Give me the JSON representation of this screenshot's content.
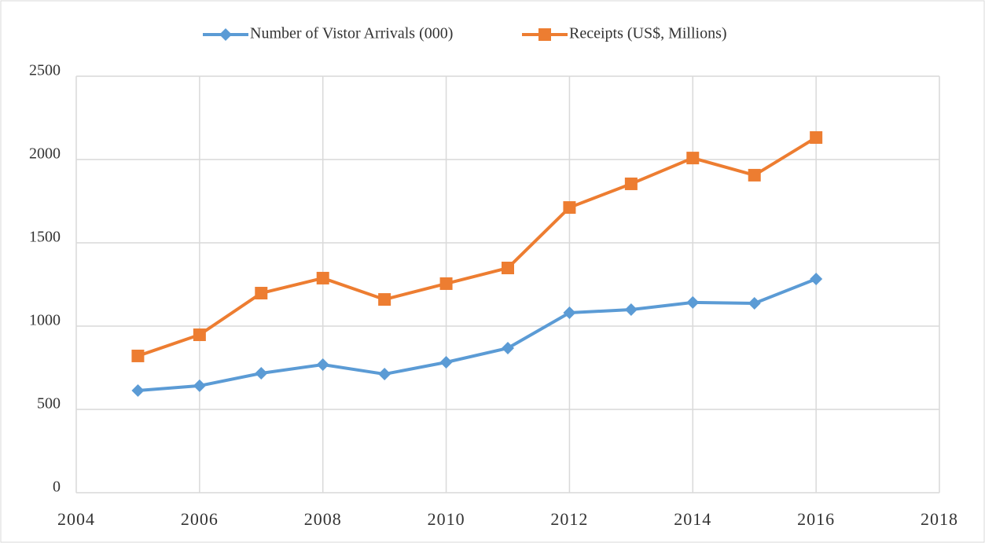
{
  "chart_data": {
    "type": "line",
    "x": [
      2005,
      2006,
      2007,
      2008,
      2009,
      2010,
      2011,
      2012,
      2013,
      2014,
      2015,
      2016
    ],
    "series": [
      {
        "name": "Number of Vistor Arrivals (000)",
        "color": "#5b9bd5",
        "marker": "diamond",
        "values": [
          613,
          642,
          717,
          769,
          712,
          783,
          868,
          1080,
          1099,
          1142,
          1137,
          1283
        ]
      },
      {
        "name": "Receipts (US$, Millions)",
        "color": "#ed7d31",
        "marker": "square",
        "values": [
          821,
          948,
          1198,
          1288,
          1160,
          1255,
          1349,
          1712,
          1854,
          2009,
          1906,
          2132
        ]
      }
    ],
    "xlim": [
      2004,
      2018
    ],
    "xticks": [
      2004,
      2006,
      2008,
      2010,
      2012,
      2014,
      2016,
      2018
    ],
    "ylim": [
      0,
      2500
    ],
    "yticks": [
      0,
      500,
      1000,
      1500,
      2000,
      2500
    ],
    "grid": true,
    "legend": "top"
  }
}
